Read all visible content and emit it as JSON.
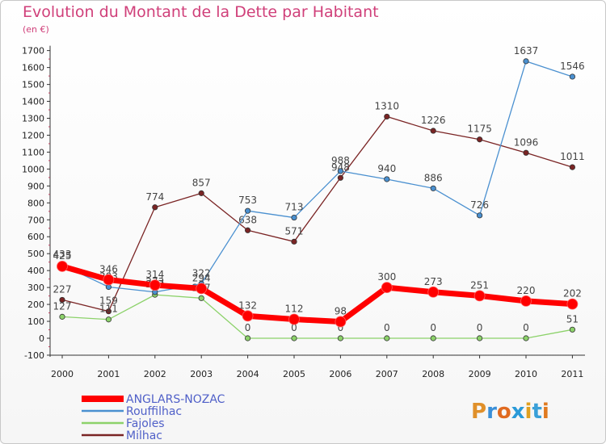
{
  "header": {
    "title": "Evolution du Montant de la Dette par Habitant",
    "subtitle": "(en €)"
  },
  "logo": {
    "text": "Proxiti"
  },
  "chart_data": {
    "type": "line",
    "title": "Evolution du Montant de la Dette par Habitant",
    "subtitle": "(en €)",
    "xlabel": "",
    "ylabel": "",
    "x": [
      "2000",
      "2001",
      "2002",
      "2003",
      "2004",
      "2005",
      "2006",
      "2007",
      "2008",
      "2009",
      "2010",
      "2011"
    ],
    "ylim": [
      -100,
      1700
    ],
    "yticks": [
      -100,
      0,
      100,
      200,
      300,
      400,
      500,
      600,
      700,
      800,
      900,
      1000,
      1100,
      1200,
      1300,
      1400,
      1500,
      1600,
      1700
    ],
    "grid": false,
    "legend": "bottom-left",
    "series": [
      {
        "name": "ANGLARS-NOZAC",
        "color": "#ff0000",
        "values": [
          425,
          346,
          314,
          294,
          132,
          112,
          98,
          300,
          273,
          251,
          220,
          202
        ]
      },
      {
        "name": "Rouffilhac",
        "color": "#4a90d0",
        "values": [
          433,
          303,
          273,
          322,
          753,
          713,
          988,
          940,
          886,
          726,
          1637,
          1546
        ]
      },
      {
        "name": "Fajoles",
        "color": "#8cd26a",
        "values": [
          127,
          111,
          257,
          237,
          0,
          0,
          0,
          0,
          0,
          0,
          0,
          51
        ]
      },
      {
        "name": "Milhac",
        "color": "#7a2424",
        "values": [
          227,
          159,
          774,
          857,
          638,
          571,
          948,
          1310,
          1226,
          1175,
          1096,
          1011
        ]
      }
    ]
  }
}
